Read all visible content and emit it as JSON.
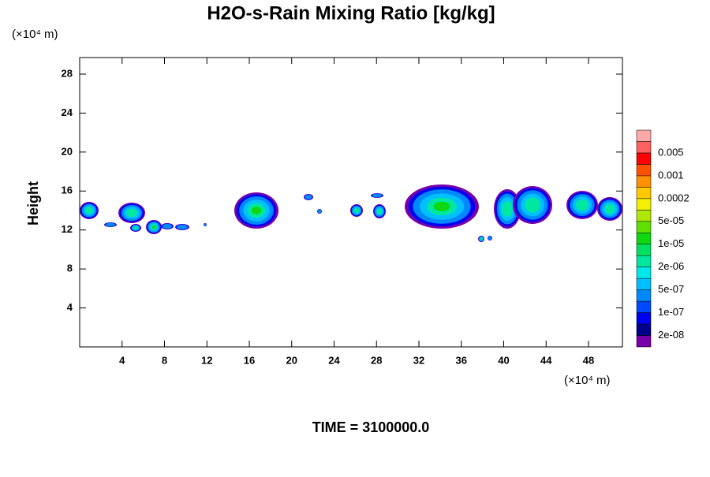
{
  "chart_data": {
    "type": "contour",
    "title": "H2O-s-Rain Mixing Ratio [kg/kg]",
    "y_label": "Height",
    "x_unit": "(×10⁴ m)",
    "y_unit": "(×10⁴ m)",
    "footer": "TIME = 3100000.0",
    "xlim": [
      0,
      51.2
    ],
    "xticks": [
      4,
      8,
      12,
      16,
      20,
      24,
      28,
      32,
      36,
      40,
      44,
      48
    ],
    "ylim": [
      0,
      29.7
    ],
    "yticks": [
      4,
      8,
      12,
      16,
      20,
      24,
      28
    ],
    "colorbar": {
      "colors": [
        "#7800a8",
        "#00008c",
        "#0000f0",
        "#0048ff",
        "#0088ff",
        "#00c0ff",
        "#00e8e8",
        "#00e8a0",
        "#00e060",
        "#10d810",
        "#60e000",
        "#b0e800",
        "#f0f000",
        "#ffc800",
        "#ff9000",
        "#ff5000",
        "#ff0000",
        "#ff6060",
        "#ffa8a8"
      ],
      "levels": [
        {
          "value": 2e-08,
          "label": "2e-08"
        },
        {
          "value": 1e-07,
          "label": "1e-07"
        },
        {
          "value": 5e-07,
          "label": "5e-07"
        },
        {
          "value": 2e-06,
          "label": "2e-06"
        },
        {
          "value": 1e-05,
          "label": "1e-05"
        },
        {
          "value": 5e-05,
          "label": "5e-05"
        },
        0.0002,
        0.001,
        0.005
      ]
    }
  }
}
